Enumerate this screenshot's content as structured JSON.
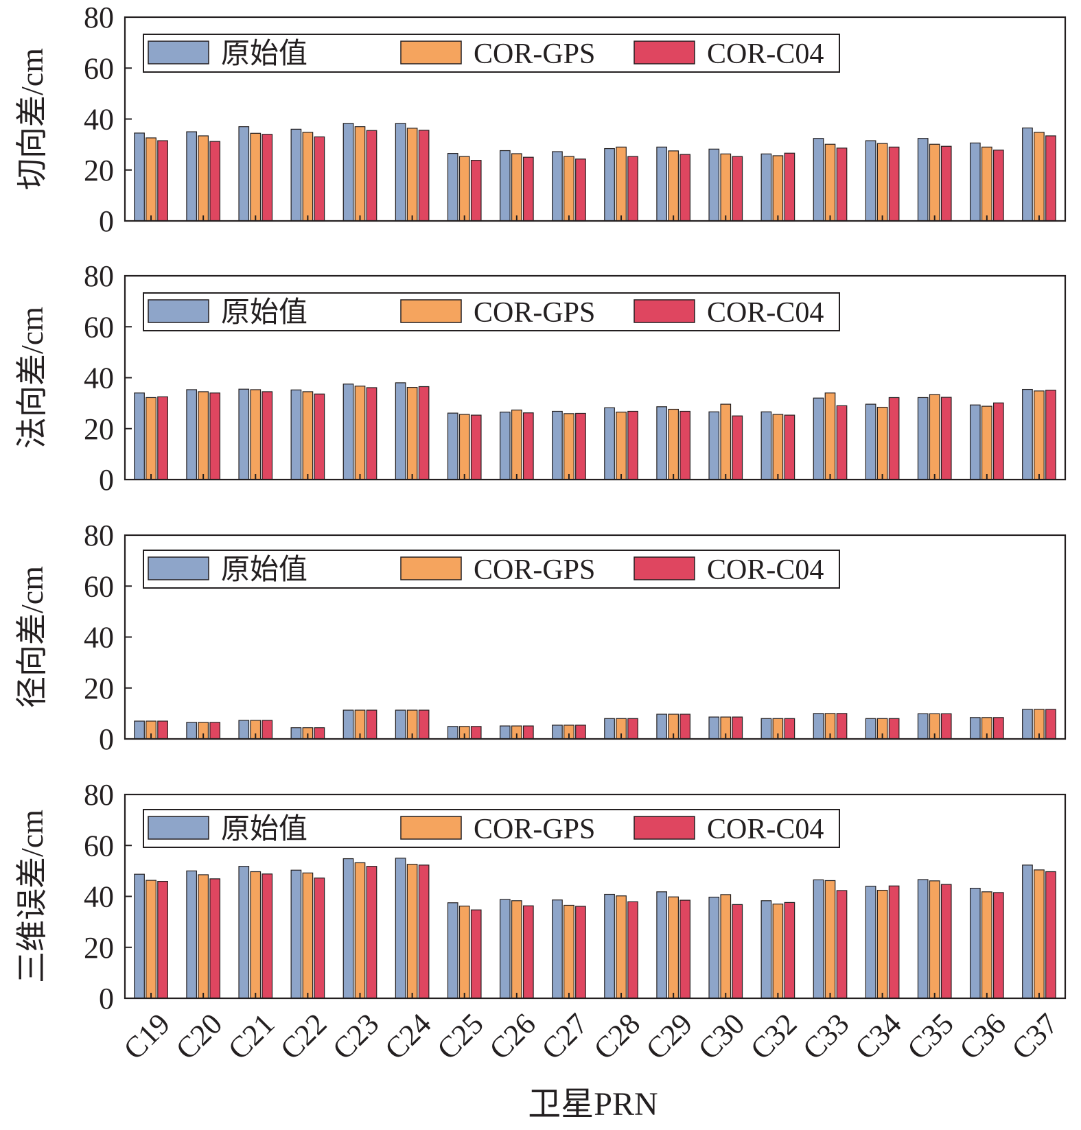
{
  "chart_data": [
    {
      "type": "bar",
      "ylabel": "切向差/cm",
      "ylim": [
        0,
        80
      ],
      "yticks": [
        0,
        20,
        40,
        60,
        80
      ],
      "categories": [
        "C19",
        "C20",
        "C21",
        "C22",
        "C23",
        "C24",
        "C25",
        "C26",
        "C27",
        "C28",
        "C29",
        "C30",
        "C32",
        "C33",
        "C34",
        "C35",
        "C36",
        "C37"
      ],
      "series": [
        {
          "name": "原始值",
          "color": "#8ea5c9",
          "values": [
            34.5,
            35,
            37,
            36,
            38.3,
            38.3,
            26.5,
            27.6,
            27.2,
            28.4,
            29,
            28.2,
            26.3,
            32.4,
            31.5,
            32.4,
            30.6,
            36.5
          ]
        },
        {
          "name": "COR-GPS",
          "color": "#f5a45e",
          "values": [
            32.6,
            33.4,
            34.4,
            34.8,
            37,
            36.4,
            25.3,
            26.4,
            25.3,
            29,
            27.5,
            26.3,
            25.6,
            30.1,
            30.4,
            30.1,
            29,
            34.8
          ]
        },
        {
          "name": "COR-C04",
          "color": "#df4660",
          "values": [
            31.5,
            31.2,
            34,
            33,
            35.5,
            35.6,
            23.8,
            25,
            24.3,
            25.3,
            26.1,
            25.3,
            26.6,
            28.6,
            29,
            29.3,
            27.8,
            33.4
          ]
        }
      ],
      "legend": "top-left",
      "grid": false
    },
    {
      "type": "bar",
      "ylabel": "法向差/cm",
      "ylim": [
        0,
        80
      ],
      "yticks": [
        0,
        20,
        40,
        60,
        80
      ],
      "categories": [
        "C19",
        "C20",
        "C21",
        "C22",
        "C23",
        "C24",
        "C25",
        "C26",
        "C27",
        "C28",
        "C29",
        "C30",
        "C32",
        "C33",
        "C34",
        "C35",
        "C36",
        "C37"
      ],
      "series": [
        {
          "name": "原始值",
          "color": "#8ea5c9",
          "values": [
            34,
            35.3,
            35.5,
            35.2,
            37.5,
            38,
            26.1,
            26.5,
            26.8,
            28.2,
            28.6,
            26.6,
            26.6,
            32,
            29.6,
            32.2,
            29.3,
            35.4
          ]
        },
        {
          "name": "COR-GPS",
          "color": "#f5a45e",
          "values": [
            32.2,
            34.5,
            35.3,
            34.5,
            36.7,
            36.2,
            25.6,
            27.3,
            25.9,
            26.5,
            27.6,
            29.6,
            25.6,
            34,
            28.4,
            33.4,
            28.8,
            34.8
          ]
        },
        {
          "name": "COR-C04",
          "color": "#df4660",
          "values": [
            32.5,
            34,
            34.5,
            33.6,
            36.1,
            36.5,
            25.3,
            26.2,
            26,
            26.8,
            26.8,
            25,
            25.3,
            29,
            32.2,
            32.3,
            30.1,
            35.1
          ]
        }
      ],
      "legend": "top-left",
      "grid": false
    },
    {
      "type": "bar",
      "ylabel": "径向差/cm",
      "ylim": [
        0,
        80
      ],
      "yticks": [
        0,
        20,
        40,
        60,
        80
      ],
      "categories": [
        "C19",
        "C20",
        "C21",
        "C22",
        "C23",
        "C24",
        "C25",
        "C26",
        "C27",
        "C28",
        "C29",
        "C30",
        "C32",
        "C33",
        "C34",
        "C35",
        "C36",
        "C37"
      ],
      "series": [
        {
          "name": "原始值",
          "color": "#8ea5c9",
          "values": [
            7,
            6.5,
            7.3,
            4.4,
            11.3,
            11.3,
            4.9,
            5.1,
            5.4,
            8,
            9.7,
            8.6,
            8,
            10,
            8,
            9.9,
            8.4,
            11.6
          ]
        },
        {
          "name": "COR-GPS",
          "color": "#f5a45e",
          "values": [
            7,
            6.5,
            7.3,
            4.4,
            11.3,
            11.3,
            4.9,
            5.1,
            5.4,
            8,
            9.7,
            8.6,
            8,
            10,
            8,
            9.9,
            8.4,
            11.6
          ]
        },
        {
          "name": "COR-C04",
          "color": "#df4660",
          "values": [
            7,
            6.5,
            7.3,
            4.4,
            11.3,
            11.3,
            4.9,
            5.1,
            5.4,
            8,
            9.7,
            8.6,
            8,
            10,
            8,
            9.9,
            8.4,
            11.6
          ]
        }
      ],
      "legend": "top-left",
      "grid": false
    },
    {
      "type": "bar",
      "ylabel": "三维误差/cm",
      "xlabel": "卫星PRN",
      "ylim": [
        0,
        80
      ],
      "yticks": [
        0,
        20,
        40,
        60,
        80
      ],
      "categories": [
        "C19",
        "C20",
        "C21",
        "C22",
        "C23",
        "C24",
        "C25",
        "C26",
        "C27",
        "C28",
        "C29",
        "C30",
        "C32",
        "C33",
        "C34",
        "C35",
        "C36",
        "C37"
      ],
      "series": [
        {
          "name": "原始值",
          "color": "#8ea5c9",
          "values": [
            48.7,
            50,
            51.8,
            50.3,
            54.8,
            55,
            37.5,
            38.8,
            38.6,
            40.8,
            41.8,
            39.7,
            38.3,
            46.5,
            44,
            46.6,
            43.2,
            52.3
          ]
        },
        {
          "name": "COR-GPS",
          "color": "#f5a45e",
          "values": [
            46.3,
            48.5,
            49.7,
            49.2,
            53.2,
            52.6,
            36.2,
            38.3,
            36.5,
            40.2,
            39.8,
            40.7,
            37,
            46.2,
            42.4,
            46.1,
            41.8,
            50.4
          ]
        },
        {
          "name": "COR-C04",
          "color": "#df4660",
          "values": [
            45.9,
            46.9,
            48.8,
            47.2,
            51.8,
            52.3,
            34.7,
            36.3,
            36.1,
            37.9,
            38.5,
            36.8,
            37.6,
            42.3,
            44.1,
            44.7,
            41.5,
            49.7
          ]
        }
      ],
      "legend": "top-left",
      "grid": false
    }
  ]
}
